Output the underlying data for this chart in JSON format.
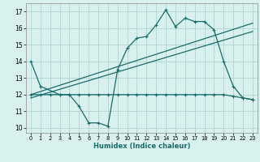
{
  "title": "",
  "xlabel": "Humidex (Indice chaleur)",
  "bg_color": "#d8f0ee",
  "grid_color": "#afd4d0",
  "line_color": "#1a6b6b",
  "xlim": [
    -0.5,
    23.5
  ],
  "ylim": [
    9.7,
    17.5
  ],
  "yticks": [
    10,
    11,
    12,
    13,
    14,
    15,
    16,
    17
  ],
  "xticks": [
    0,
    1,
    2,
    3,
    4,
    5,
    6,
    7,
    8,
    9,
    10,
    11,
    12,
    13,
    14,
    15,
    16,
    17,
    18,
    19,
    20,
    21,
    22,
    23
  ],
  "line1_x": [
    0,
    1,
    3,
    4,
    5,
    6,
    7,
    8,
    9,
    10,
    11,
    12,
    13,
    14,
    15,
    16,
    17,
    18,
    19,
    20,
    21,
    22,
    23
  ],
  "line1_y": [
    14.0,
    12.5,
    12.0,
    12.0,
    11.3,
    10.3,
    10.3,
    10.1,
    13.5,
    14.8,
    15.4,
    15.5,
    16.2,
    17.1,
    16.1,
    16.6,
    16.4,
    16.4,
    15.9,
    14.0,
    12.5,
    11.8,
    11.7
  ],
  "line2_x": [
    0,
    1,
    2,
    3,
    4,
    5,
    6,
    7,
    8,
    9,
    10,
    11,
    12,
    13,
    14,
    15,
    16,
    17,
    18,
    19,
    20,
    21,
    22,
    23
  ],
  "line2_y": [
    12.0,
    12.0,
    12.0,
    12.0,
    12.0,
    12.0,
    12.0,
    12.0,
    12.0,
    12.0,
    12.0,
    12.0,
    12.0,
    12.0,
    12.0,
    12.0,
    12.0,
    12.0,
    12.0,
    12.0,
    12.0,
    11.9,
    11.8,
    11.7
  ],
  "line3_x": [
    0,
    23
  ],
  "line3_y": [
    12.0,
    16.3
  ],
  "line4_x": [
    0,
    23
  ],
  "line4_y": [
    11.8,
    15.8
  ]
}
